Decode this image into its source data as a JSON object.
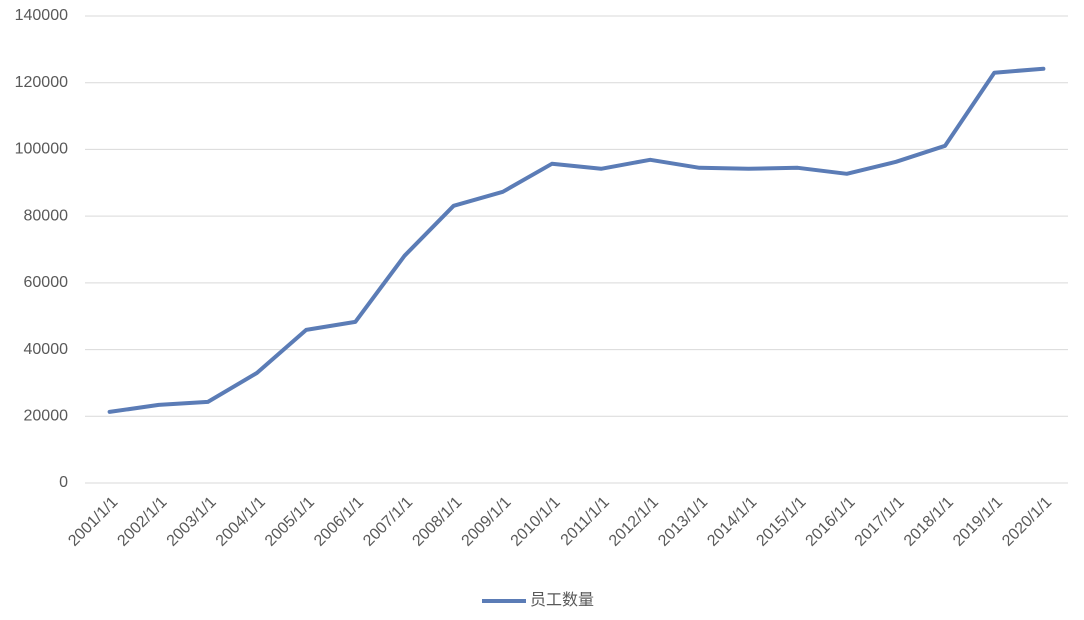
{
  "chart_data": {
    "type": "line",
    "categories": [
      "2001/1/1",
      "2002/1/1",
      "2003/1/1",
      "2004/1/1",
      "2005/1/1",
      "2006/1/1",
      "2007/1/1",
      "2008/1/1",
      "2009/1/1",
      "2010/1/1",
      "2011/1/1",
      "2012/1/1",
      "2013/1/1",
      "2014/1/1",
      "2015/1/1",
      "2016/1/1",
      "2017/1/1",
      "2018/1/1",
      "2019/1/1",
      "2020/1/1"
    ],
    "series": [
      {
        "name": "员工数量",
        "color": "#5b7cb6",
        "values": [
          21300,
          23400,
          24300,
          33000,
          45900,
          48300,
          68100,
          83100,
          87300,
          95700,
          94200,
          96900,
          94500,
          94200,
          94500,
          92700,
          96300,
          101100,
          123000,
          124200
        ]
      }
    ],
    "ylim": [
      0,
      140000
    ],
    "yticks": [
      0,
      20000,
      40000,
      60000,
      80000,
      100000,
      120000,
      140000
    ],
    "grid": true,
    "legend": "bottom"
  }
}
